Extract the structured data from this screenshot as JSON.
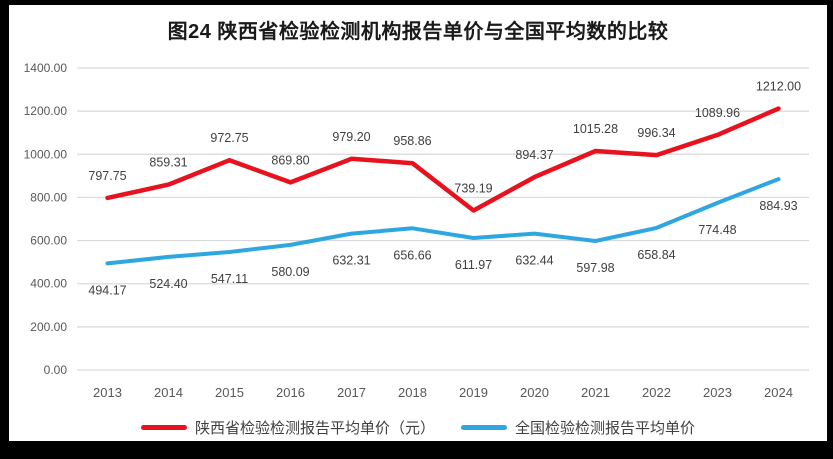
{
  "chart_data": {
    "type": "line",
    "title": "图24 陕西省检验检测机构报告单价与全国平均数的比较",
    "categories": [
      "2013",
      "2014",
      "2015",
      "2016",
      "2017",
      "2018",
      "2019",
      "2020",
      "2021",
      "2022",
      "2023",
      "2024"
    ],
    "series": [
      {
        "name": "陕西省检验检测报告平均单价（元）",
        "color": "#e8121e",
        "label_position": "above",
        "values": [
          797.75,
          859.31,
          972.75,
          869.8,
          979.2,
          958.86,
          739.19,
          894.37,
          1015.28,
          996.34,
          1089.96,
          1212.0
        ]
      },
      {
        "name": "全国检验检测报告平均单价",
        "color": "#2ea7e0",
        "label_position": "below",
        "values": [
          494.17,
          524.4,
          547.11,
          580.09,
          632.31,
          656.66,
          611.97,
          632.44,
          597.98,
          658.84,
          774.48,
          884.93
        ]
      }
    ],
    "ylim": [
      0,
      1400
    ],
    "ytick_step": 200,
    "ytick_decimals": 2,
    "value_label_decimals": 2,
    "grid": true,
    "legend_position": "bottom",
    "gridline_color": "#d9d9d9",
    "axis_text_color": "#595959",
    "value_label_color": "#404040"
  }
}
